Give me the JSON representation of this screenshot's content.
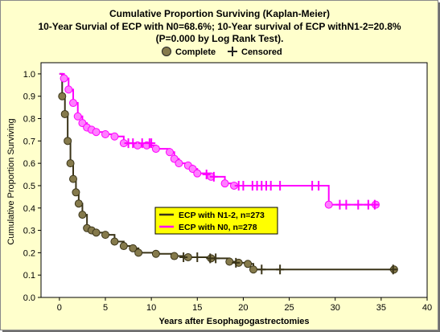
{
  "chart_data": {
    "type": "line",
    "title": "Cumulative Proportion Surviving (Kaplan-Meier)",
    "subtitle_lines": [
      "10-Year Survial of ECP with N0=68.6%; 10-Year survival of ECP withN1-2=20.8%",
      "(P=0.000 by Log Rank Test)."
    ],
    "xlabel": "Years after Esophagogastrectomies",
    "ylabel": "Cumulative Proportion Surviving",
    "xlim": [
      -2,
      40
    ],
    "ylim": [
      0,
      1.05
    ],
    "x_ticks": [
      0,
      5,
      10,
      15,
      20,
      25,
      30,
      35,
      40
    ],
    "y_ticks": [
      0.0,
      0.1,
      0.2,
      0.3,
      0.4,
      0.5,
      0.6,
      0.7,
      0.8,
      0.9,
      1.0
    ],
    "grid": false,
    "top_legend": {
      "complete": "Complete",
      "censored": "Censored"
    },
    "inner_legend_position": "center-left",
    "series": [
      {
        "name": "ECP with N1-2, n=273",
        "color": "#3a3418",
        "marker_color": "#857a4c",
        "x": [
          0,
          0.3,
          0.6,
          0.9,
          1.2,
          1.5,
          1.8,
          2.1,
          2.5,
          3.0,
          3.5,
          4.0,
          5.0,
          6.0,
          7.0,
          8.0,
          8.6,
          10.5,
          12.5,
          14.0,
          16.5,
          18.5,
          19.5,
          20.5,
          21.1,
          36.4
        ],
        "y": [
          1.0,
          0.9,
          0.82,
          0.7,
          0.6,
          0.53,
          0.47,
          0.42,
          0.37,
          0.31,
          0.3,
          0.29,
          0.28,
          0.25,
          0.23,
          0.22,
          0.2,
          0.195,
          0.185,
          0.18,
          0.175,
          0.16,
          0.155,
          0.15,
          0.125,
          0.125
        ],
        "censored": [
          [
            13.5,
            0.18
          ],
          [
            15.0,
            0.18
          ],
          [
            16.4,
            0.175
          ],
          [
            17.0,
            0.175
          ],
          [
            19.2,
            0.155
          ],
          [
            22.0,
            0.125
          ],
          [
            24.0,
            0.125
          ],
          [
            36.3,
            0.125
          ]
        ]
      },
      {
        "name": "ECP with N0, n=278",
        "color": "#ff00ff",
        "marker_color": "#ff80ff",
        "x": [
          0,
          0.5,
          1.0,
          1.5,
          2.0,
          2.5,
          3.0,
          3.5,
          4.0,
          5.0,
          6.0,
          7.0,
          8.5,
          9.5,
          10.5,
          12.0,
          12.5,
          13.0,
          14.0,
          14.5,
          15.0,
          16.5,
          18.0,
          19.0,
          29.3,
          34.4
        ],
        "y": [
          1.0,
          0.98,
          0.93,
          0.87,
          0.81,
          0.78,
          0.76,
          0.75,
          0.74,
          0.73,
          0.72,
          0.69,
          0.68,
          0.68,
          0.665,
          0.65,
          0.62,
          0.6,
          0.59,
          0.575,
          0.555,
          0.54,
          0.51,
          0.5,
          0.415,
          0.415
        ],
        "censored": [
          [
            7.5,
            0.69
          ],
          [
            8.0,
            0.69
          ],
          [
            9.0,
            0.69
          ],
          [
            9.8,
            0.69
          ],
          [
            10.0,
            0.69
          ],
          [
            16.0,
            0.55
          ],
          [
            16.8,
            0.54
          ],
          [
            19.5,
            0.5
          ],
          [
            20.0,
            0.5
          ],
          [
            21.0,
            0.5
          ],
          [
            21.5,
            0.5
          ],
          [
            22.0,
            0.5
          ],
          [
            22.5,
            0.5
          ],
          [
            23.0,
            0.5
          ],
          [
            24.0,
            0.5
          ],
          [
            27.5,
            0.5
          ],
          [
            28.2,
            0.5
          ],
          [
            30.5,
            0.415
          ],
          [
            31.2,
            0.415
          ],
          [
            32.5,
            0.415
          ],
          [
            33.6,
            0.415
          ],
          [
            34.3,
            0.415
          ]
        ]
      }
    ]
  }
}
